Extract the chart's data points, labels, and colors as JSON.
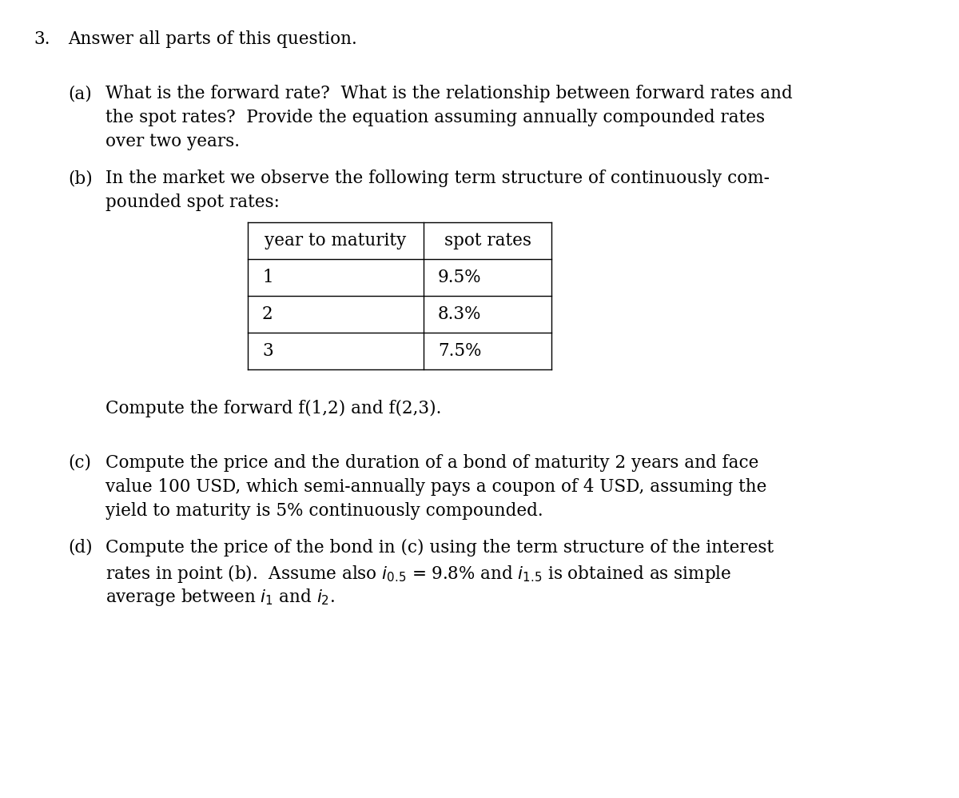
{
  "bg_color": "#ffffff",
  "fig_width": 12.0,
  "fig_height": 9.98,
  "font_size_body": 15.5,
  "font_size_table": 15.5,
  "text_color": "#000000",
  "font_family": "serif",
  "line1": "3.  Answer all parts of this question.",
  "a_label": "(a)",
  "a_line1": "What is the forward rate?  What is the relationship between forward rates and",
  "a_line2": "the spot rates?  Provide the equation assuming annually compounded rates",
  "a_line3": "over two years.",
  "b_label": "(b)",
  "b_line1": "In the market we observe the following term structure of continuously com-",
  "b_line2": "pounded spot rates:",
  "table_col1_header": "year to maturity",
  "table_col2_header": "spot rates",
  "table_rows": [
    [
      "1",
      "9.5%"
    ],
    [
      "2",
      "8.3%"
    ],
    [
      "3",
      "7.5%"
    ]
  ],
  "b_compute": "Compute the forward f(1,2) and f(2,3).",
  "c_label": "(c)",
  "c_line1": "Compute the price and the duration of a bond of maturity 2 years and face",
  "c_line2": "value 100 USD, which semi-annually pays a coupon of 4 USD, assuming the",
  "c_line3": "yield to maturity is 5% continuously compounded.",
  "d_label": "(d)",
  "d_line1": "Compute the price of the bond in (c) using the term structure of the interest",
  "d_line2_pre": "rates in point (b).  Assume also ",
  "d_line2_i05": "i",
  "d_line2_sub05": "0.5",
  "d_line2_mid": " = 9.8% and ",
  "d_line2_i15": "i",
  "d_line2_sub15": "1.5",
  "d_line2_end": " is obtained as simple",
  "d_line3_pre": "average between ",
  "d_line3_i1": "i",
  "d_line3_sub1": "1",
  "d_line3_mid": " and ",
  "d_line3_i2": "i",
  "d_line3_sub2": "2",
  "d_line3_end": "."
}
